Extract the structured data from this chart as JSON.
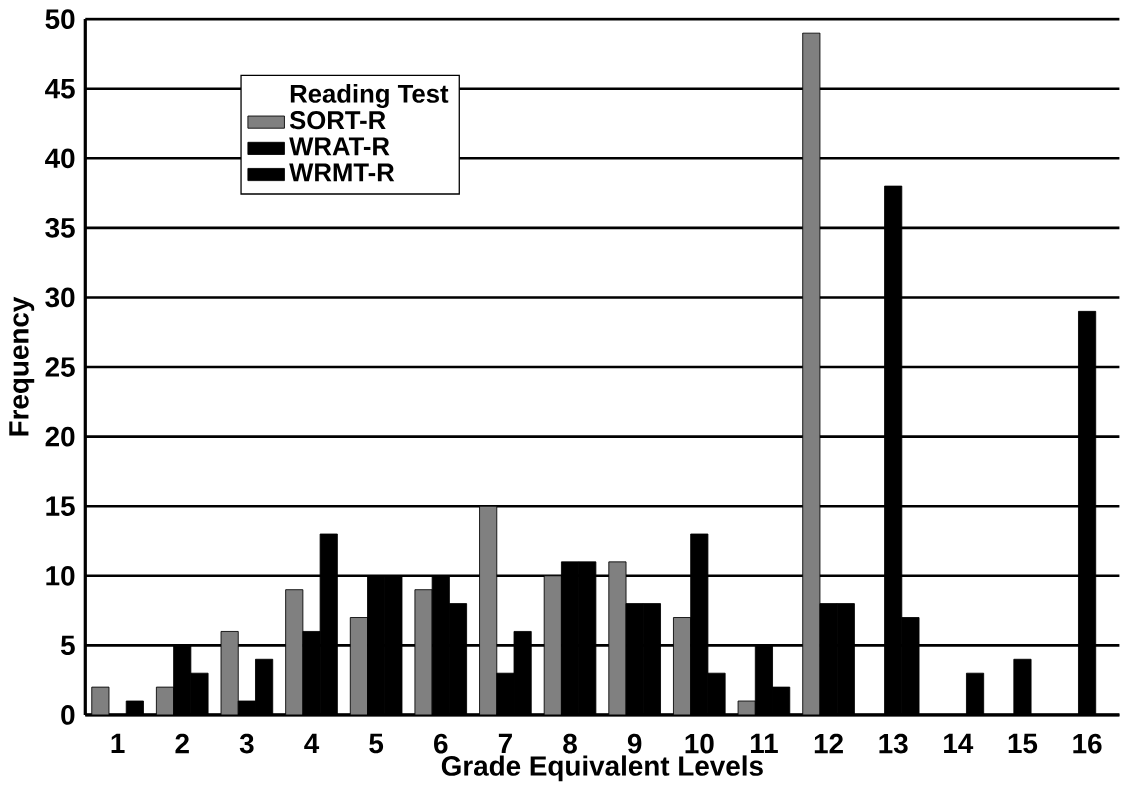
{
  "chart_data": {
    "type": "bar",
    "xlabel": "Grade Equivalent Levels",
    "ylabel": "Frequency",
    "legend_title": "Reading Test",
    "categories": [
      "1",
      "2",
      "3",
      "4",
      "5",
      "6",
      "7",
      "8",
      "9",
      "10",
      "11",
      "12",
      "13",
      "14",
      "15",
      "16"
    ],
    "series": [
      {
        "name": "SORT-R",
        "color": "#808080",
        "values": [
          2,
          2,
          6,
          9,
          7,
          9,
          15,
          10,
          11,
          7,
          1,
          49,
          0,
          0,
          0,
          0
        ]
      },
      {
        "name": "WRAT-R",
        "color": "#000000",
        "values": [
          0,
          5,
          1,
          6,
          10,
          10,
          3,
          11,
          8,
          13,
          5,
          8,
          38,
          0,
          4,
          29
        ]
      },
      {
        "name": "WRMT-R",
        "color": "#000000",
        "values": [
          1,
          3,
          4,
          13,
          10,
          8,
          6,
          11,
          8,
          3,
          2,
          8,
          7,
          3,
          0,
          0
        ]
      }
    ],
    "ylim": [
      0,
      50
    ],
    "yticks": [
      0,
      5,
      10,
      15,
      20,
      25,
      30,
      35,
      40,
      45,
      50
    ],
    "grid": "y",
    "legend": "top left"
  }
}
